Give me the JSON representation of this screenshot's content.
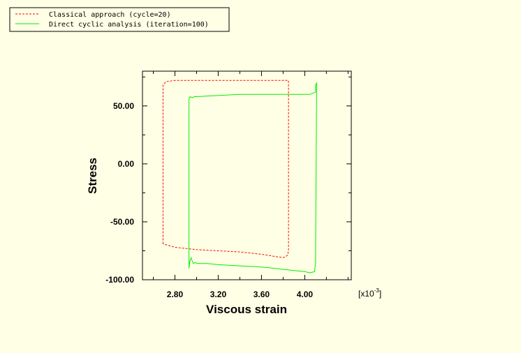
{
  "chart_data": {
    "type": "line",
    "xlabel": "Viscous strain",
    "ylabel": "Stress",
    "x_unit_label": "[x10",
    "x_unit_exponent": "-3",
    "x_unit_close": "]",
    "xlim": [
      2.5,
      4.43
    ],
    "ylim": [
      -100,
      80
    ],
    "x_ticks": [
      2.8,
      3.2,
      3.6,
      4.0
    ],
    "x_tick_labels": [
      "2.80",
      "3.20",
      "3.60",
      "4.00"
    ],
    "y_ticks": [
      50,
      0,
      -50,
      -100
    ],
    "y_tick_labels": [
      "50.00",
      "0.00",
      "-50.00",
      "-100.00"
    ],
    "grid": false,
    "legend_position": "top-left",
    "series": [
      {
        "name": "Classical approach (cycle=20)",
        "color": "#ff0000",
        "style": "dashed",
        "x": [
          2.69,
          2.69,
          2.72,
          2.8,
          3.0,
          3.2,
          3.4,
          3.6,
          3.78,
          3.85,
          3.85,
          3.84,
          3.8,
          3.6,
          3.4,
          3.2,
          3.0,
          2.8,
          2.69
        ],
        "y": [
          -69,
          68,
          71,
          72,
          72,
          72,
          72,
          72,
          72,
          72,
          -75,
          -79,
          -81,
          -78,
          -76,
          -75,
          -74,
          -72,
          -69
        ]
      },
      {
        "name": "Direct cyclic analysis (iteration=100)",
        "color": "#00ee00",
        "style": "solid",
        "x": [
          2.93,
          2.94,
          2.96,
          2.98,
          3.0,
          3.2,
          3.4,
          3.6,
          3.8,
          4.0,
          4.05,
          4.1,
          4.1,
          4.11,
          4.1,
          4.1,
          4.09,
          4.05,
          4.0,
          3.9,
          3.8,
          3.6,
          3.4,
          3.2,
          3.1,
          3.0,
          2.99,
          2.97,
          2.96,
          2.95,
          2.94,
          2.93,
          2.93
        ],
        "y": [
          56,
          58,
          57,
          58,
          58,
          59,
          60,
          60,
          60,
          60,
          60,
          62,
          68,
          70,
          -75,
          -85,
          -93,
          -94,
          -93,
          -92,
          -91,
          -89,
          -88,
          -87,
          -86,
          -86,
          -85,
          -86,
          -84,
          -81,
          -83,
          -90,
          56
        ]
      }
    ]
  }
}
